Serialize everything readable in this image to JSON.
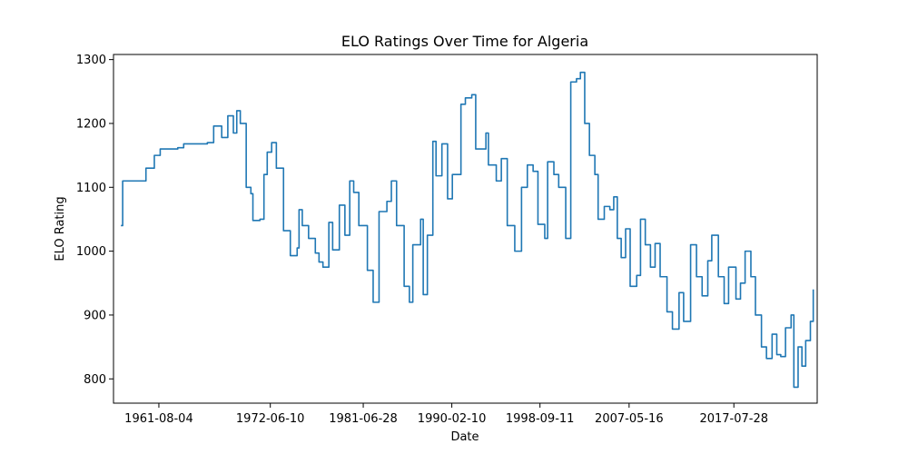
{
  "chart_data": {
    "type": "line",
    "title": "ELO Ratings Over Time for Algeria",
    "xlabel": "Date",
    "ylabel": "ELO Rating",
    "x_ticks": [
      "1961-08-04",
      "1972-06-10",
      "1981-06-28",
      "1990-02-10",
      "1998-09-11",
      "2007-05-16",
      "2017-07-28"
    ],
    "y_ticks": [
      800,
      900,
      1000,
      1100,
      1200,
      1300
    ],
    "xlim": [
      "1957-03-05",
      "2025-09-07"
    ],
    "ylim": [
      762,
      1308
    ],
    "grid": false,
    "legend": "none",
    "series": [
      {
        "color": "#1f77b4",
        "points": [
          [
            "1957-11-23",
            1040
          ],
          [
            "1958-01-25",
            1110
          ],
          [
            "1959-10-19",
            1110
          ],
          [
            "1960-05-02",
            1130
          ],
          [
            "1961-02-24",
            1150
          ],
          [
            "1961-09-21",
            1160
          ],
          [
            "1963-06-07",
            1162
          ],
          [
            "1964-01-04",
            1168
          ],
          [
            "1966-04-24",
            1170
          ],
          [
            "1966-12-05",
            1196
          ],
          [
            "1967-09-17",
            1178
          ],
          [
            "1968-04-21",
            1212
          ],
          [
            "1968-11-05",
            1185
          ],
          [
            "1969-03-05",
            1220
          ],
          [
            "1969-07-09",
            1200
          ],
          [
            "1970-02-04",
            1100
          ],
          [
            "1970-07-20",
            1090
          ],
          [
            "1970-09-30",
            1048
          ],
          [
            "1971-06-08",
            1050
          ],
          [
            "1971-10-28",
            1120
          ],
          [
            "1972-02-21",
            1155
          ],
          [
            "1972-07-28",
            1170
          ],
          [
            "1973-01-11",
            1130
          ],
          [
            "1973-09-23",
            1032
          ],
          [
            "1974-05-23",
            993
          ],
          [
            "1975-01-21",
            1005
          ],
          [
            "1975-03-29",
            1065
          ],
          [
            "1975-07-22",
            1040
          ],
          [
            "1976-03-02",
            1020
          ],
          [
            "1976-10-28",
            997
          ],
          [
            "1977-03-08",
            983
          ],
          [
            "1977-07-26",
            975
          ],
          [
            "1978-02-21",
            1045
          ],
          [
            "1978-07-06",
            1002
          ],
          [
            "1979-03-01",
            1072
          ],
          [
            "1979-09-15",
            1025
          ],
          [
            "1980-03-05",
            1110
          ],
          [
            "1980-07-23",
            1092
          ],
          [
            "1981-01-22",
            1040
          ],
          [
            "1981-11-22",
            970
          ],
          [
            "1982-06-15",
            920
          ],
          [
            "1983-01-11",
            1062
          ],
          [
            "1983-10-17",
            1078
          ],
          [
            "1984-03-24",
            1110
          ],
          [
            "1984-09-25",
            1040
          ],
          [
            "1985-06-21",
            945
          ],
          [
            "1985-12-25",
            920
          ],
          [
            "1986-04-25",
            1010
          ],
          [
            "1987-01-28",
            1050
          ],
          [
            "1987-05-01",
            932
          ],
          [
            "1987-09-25",
            1025
          ],
          [
            "1988-04-07",
            1172
          ],
          [
            "1988-07-29",
            1118
          ],
          [
            "1989-02-23",
            1168
          ],
          [
            "1989-09-13",
            1082
          ],
          [
            "1990-03-01",
            1120
          ],
          [
            "1991-01-01",
            1230
          ],
          [
            "1991-06-07",
            1240
          ],
          [
            "1992-01-21",
            1245
          ],
          [
            "1992-06-09",
            1160
          ],
          [
            "1993-06-07",
            1185
          ],
          [
            "1993-09-04",
            1135
          ],
          [
            "1994-06-10",
            1110
          ],
          [
            "1994-12-07",
            1145
          ],
          [
            "1995-07-06",
            1040
          ],
          [
            "1996-03-29",
            1000
          ],
          [
            "1996-11-24",
            1100
          ],
          [
            "1997-06-19",
            1135
          ],
          [
            "1998-01-10",
            1125
          ],
          [
            "1998-07-01",
            1042
          ],
          [
            "1999-02-28",
            1020
          ],
          [
            "1999-06-10",
            1140
          ],
          [
            "2000-01-19",
            1120
          ],
          [
            "2000-07-08",
            1100
          ],
          [
            "2001-03-15",
            1020
          ],
          [
            "2001-09-10",
            1265
          ],
          [
            "2002-04-02",
            1270
          ],
          [
            "2002-08-19",
            1280
          ],
          [
            "2003-01-19",
            1200
          ],
          [
            "2003-07-06",
            1150
          ],
          [
            "2004-01-15",
            1120
          ],
          [
            "2004-05-10",
            1050
          ],
          [
            "2004-12-15",
            1070
          ],
          [
            "2005-07-01",
            1065
          ],
          [
            "2005-11-16",
            1085
          ],
          [
            "2006-03-23",
            1020
          ],
          [
            "2006-08-08",
            990
          ],
          [
            "2007-01-12",
            1035
          ],
          [
            "2007-06-23",
            945
          ],
          [
            "2008-02-11",
            962
          ],
          [
            "2008-06-25",
            1050
          ],
          [
            "2008-12-12",
            1010
          ],
          [
            "2009-06-14",
            975
          ],
          [
            "2009-11-26",
            1012
          ],
          [
            "2010-05-24",
            960
          ],
          [
            "2011-01-23",
            905
          ],
          [
            "2011-08-04",
            878
          ],
          [
            "2012-03-26",
            935
          ],
          [
            "2012-09-05",
            890
          ],
          [
            "2013-05-11",
            1010
          ],
          [
            "2013-12-07",
            960
          ],
          [
            "2014-06-25",
            930
          ],
          [
            "2015-01-13",
            985
          ],
          [
            "2015-06-03",
            1025
          ],
          [
            "2016-01-24",
            960
          ],
          [
            "2016-08-16",
            918
          ],
          [
            "2017-01-21",
            975
          ],
          [
            "2017-10-10",
            925
          ],
          [
            "2018-03-20",
            950
          ],
          [
            "2018-08-31",
            1000
          ],
          [
            "2019-03-25",
            960
          ],
          [
            "2019-09-03",
            900
          ],
          [
            "2020-04-04",
            850
          ],
          [
            "2020-09-29",
            832
          ],
          [
            "2021-04-17",
            870
          ],
          [
            "2021-10-01",
            838
          ],
          [
            "2022-02-19",
            835
          ],
          [
            "2022-08-07",
            880
          ],
          [
            "2023-02-22",
            900
          ],
          [
            "2023-05-31",
            787
          ],
          [
            "2023-10-29",
            850
          ],
          [
            "2024-03-13",
            820
          ],
          [
            "2024-07-25",
            860
          ],
          [
            "2025-01-08",
            890
          ],
          [
            "2025-04-20",
            940
          ]
        ]
      }
    ]
  }
}
